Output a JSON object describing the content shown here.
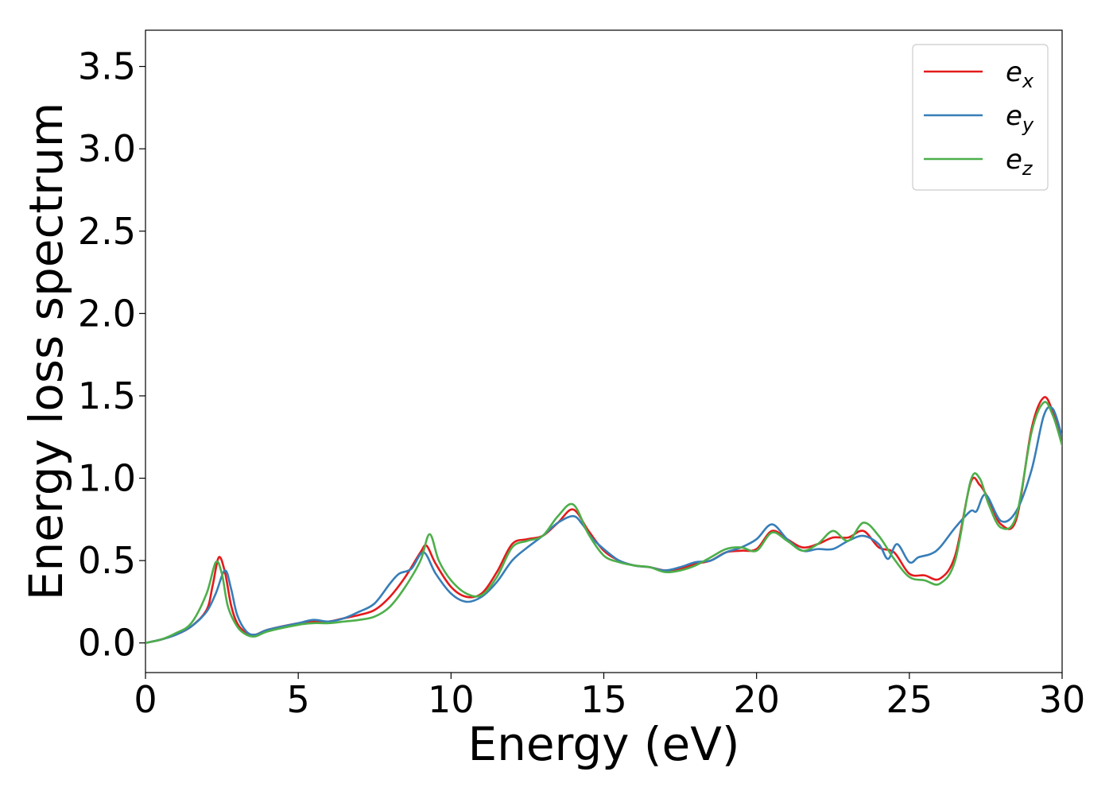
{
  "chart_data": {
    "type": "line",
    "title": "",
    "xlabel": "Energy (eV)",
    "ylabel": "Energy loss spectrum",
    "xlim": [
      0,
      30
    ],
    "ylim": [
      -0.18,
      3.72
    ],
    "xticks": [
      0,
      5,
      10,
      15,
      20,
      25,
      30
    ],
    "xtick_labels": [
      "0",
      "5",
      "10",
      "15",
      "20",
      "25",
      "30"
    ],
    "yticks": [
      0.0,
      0.5,
      1.0,
      1.5,
      2.0,
      2.5,
      3.0,
      3.5
    ],
    "ytick_labels": [
      "0.0",
      "0.5",
      "1.0",
      "1.5",
      "2.0",
      "2.5",
      "3.0",
      "3.5"
    ],
    "grid": false,
    "legend_position": "top-right",
    "series": [
      {
        "key": "ex",
        "base": "e",
        "sub": "x",
        "color": "#e41a1c",
        "x": [
          0,
          0.5,
          1.0,
          1.5,
          2.0,
          2.2,
          2.4,
          2.6,
          2.8,
          3.0,
          3.3,
          3.6,
          4.0,
          5.0,
          5.5,
          6.0,
          6.5,
          7.0,
          7.5,
          8.0,
          8.5,
          9.0,
          9.2,
          9.5,
          10.0,
          10.5,
          11.0,
          11.5,
          12.0,
          12.5,
          13.0,
          13.5,
          14.0,
          14.5,
          15.0,
          15.5,
          16.0,
          16.5,
          17.0,
          17.5,
          18.0,
          18.5,
          19.0,
          19.5,
          20.0,
          20.5,
          21.0,
          21.5,
          22.0,
          22.5,
          23.0,
          23.5,
          24.0,
          24.5,
          25.0,
          25.5,
          26.0,
          26.5,
          27.0,
          27.3,
          27.6,
          28.0,
          28.5,
          29.0,
          29.4,
          29.7,
          30.0
        ],
        "y": [
          0.0,
          0.02,
          0.05,
          0.1,
          0.2,
          0.35,
          0.52,
          0.43,
          0.23,
          0.12,
          0.06,
          0.05,
          0.08,
          0.12,
          0.13,
          0.13,
          0.15,
          0.17,
          0.2,
          0.28,
          0.4,
          0.55,
          0.59,
          0.48,
          0.34,
          0.28,
          0.3,
          0.43,
          0.6,
          0.63,
          0.65,
          0.73,
          0.81,
          0.68,
          0.56,
          0.5,
          0.47,
          0.46,
          0.44,
          0.45,
          0.48,
          0.5,
          0.55,
          0.56,
          0.57,
          0.68,
          0.63,
          0.58,
          0.6,
          0.64,
          0.64,
          0.68,
          0.58,
          0.55,
          0.42,
          0.41,
          0.39,
          0.53,
          0.97,
          0.96,
          0.87,
          0.72,
          0.75,
          1.3,
          1.49,
          1.4,
          1.22
        ]
      },
      {
        "key": "ey",
        "base": "e",
        "sub": "y",
        "color": "#377eb8",
        "x": [
          0,
          0.5,
          1.0,
          1.5,
          2.0,
          2.3,
          2.6,
          2.8,
          3.0,
          3.3,
          3.6,
          4.0,
          5.0,
          5.5,
          6.0,
          6.5,
          7.0,
          7.5,
          8.0,
          8.3,
          8.7,
          9.1,
          9.5,
          10.0,
          10.5,
          11.0,
          11.5,
          12.0,
          12.5,
          13.0,
          13.5,
          14.0,
          14.3,
          14.6,
          15.0,
          15.5,
          16.0,
          16.5,
          17.0,
          17.5,
          18.0,
          18.5,
          19.0,
          19.5,
          20.0,
          20.5,
          21.0,
          21.5,
          22.0,
          22.5,
          23.0,
          23.5,
          24.0,
          24.3,
          24.6,
          25.0,
          25.3,
          25.7,
          26.0,
          26.5,
          27.0,
          27.2,
          27.5,
          28.0,
          28.5,
          29.0,
          29.4,
          29.7,
          30.0
        ],
        "y": [
          0.0,
          0.02,
          0.05,
          0.1,
          0.19,
          0.3,
          0.44,
          0.33,
          0.17,
          0.07,
          0.05,
          0.08,
          0.12,
          0.14,
          0.13,
          0.15,
          0.19,
          0.24,
          0.36,
          0.42,
          0.45,
          0.55,
          0.42,
          0.3,
          0.25,
          0.28,
          0.37,
          0.5,
          0.58,
          0.65,
          0.73,
          0.77,
          0.72,
          0.64,
          0.57,
          0.5,
          0.47,
          0.46,
          0.44,
          0.46,
          0.49,
          0.5,
          0.55,
          0.58,
          0.63,
          0.72,
          0.63,
          0.56,
          0.57,
          0.57,
          0.62,
          0.65,
          0.6,
          0.51,
          0.6,
          0.49,
          0.52,
          0.54,
          0.58,
          0.7,
          0.8,
          0.8,
          0.9,
          0.74,
          0.8,
          1.05,
          1.38,
          1.42,
          1.25
        ]
      },
      {
        "key": "ez",
        "base": "e",
        "sub": "z",
        "color": "#4daf4a",
        "x": [
          0,
          0.5,
          1.0,
          1.5,
          2.0,
          2.3,
          2.5,
          2.7,
          3.0,
          3.3,
          3.6,
          4.0,
          5.0,
          5.5,
          6.0,
          6.5,
          7.0,
          7.5,
          8.0,
          8.5,
          9.0,
          9.3,
          9.6,
          10.0,
          10.5,
          11.0,
          11.5,
          12.0,
          12.5,
          13.0,
          13.5,
          14.0,
          14.5,
          15.0,
          15.5,
          16.0,
          16.5,
          17.0,
          17.5,
          18.0,
          18.5,
          19.0,
          19.5,
          20.0,
          20.5,
          21.0,
          21.5,
          22.0,
          22.5,
          23.0,
          23.5,
          24.0,
          24.5,
          25.0,
          25.5,
          26.0,
          26.5,
          27.0,
          27.3,
          27.6,
          28.0,
          28.5,
          29.0,
          29.4,
          29.7,
          30.0
        ],
        "y": [
          0.0,
          0.02,
          0.06,
          0.12,
          0.3,
          0.49,
          0.42,
          0.22,
          0.1,
          0.05,
          0.04,
          0.07,
          0.11,
          0.12,
          0.12,
          0.13,
          0.14,
          0.16,
          0.22,
          0.34,
          0.5,
          0.66,
          0.5,
          0.38,
          0.3,
          0.29,
          0.4,
          0.58,
          0.62,
          0.65,
          0.77,
          0.84,
          0.66,
          0.53,
          0.49,
          0.47,
          0.46,
          0.43,
          0.44,
          0.47,
          0.52,
          0.57,
          0.58,
          0.56,
          0.67,
          0.62,
          0.56,
          0.6,
          0.68,
          0.62,
          0.73,
          0.65,
          0.51,
          0.4,
          0.38,
          0.36,
          0.5,
          0.98,
          1.0,
          0.84,
          0.7,
          0.77,
          1.28,
          1.46,
          1.38,
          1.2
        ]
      }
    ]
  }
}
